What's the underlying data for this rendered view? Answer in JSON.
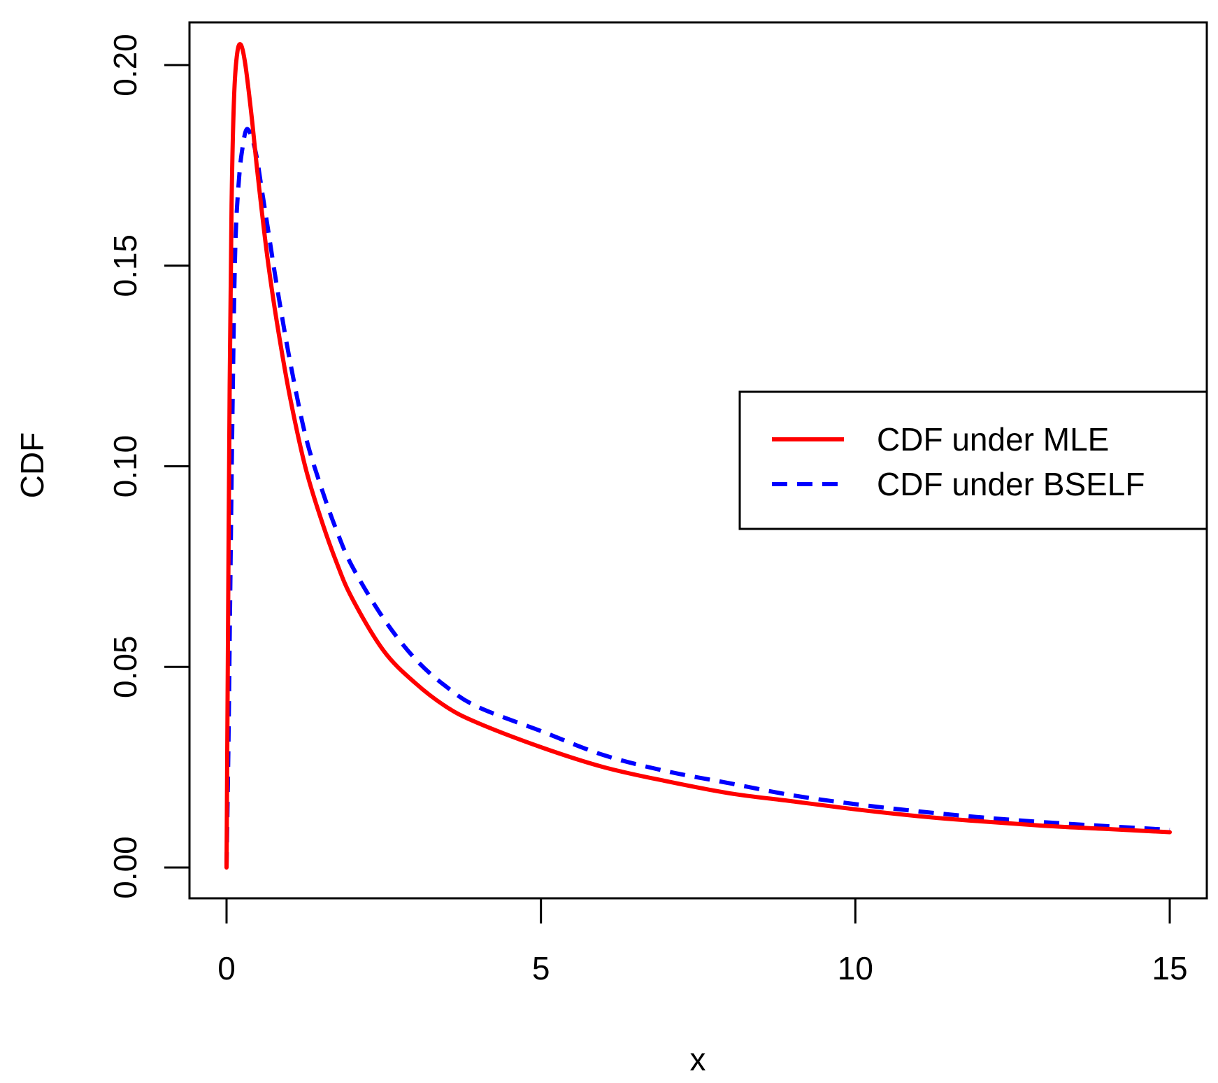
{
  "chart_data": {
    "type": "line",
    "title": "",
    "xlabel": "x",
    "ylabel": "CDF",
    "xlim": [
      0,
      15
    ],
    "ylim": [
      0,
      0.2
    ],
    "xticks": [
      0,
      5,
      10,
      15
    ],
    "xtick_labels": [
      "0",
      "5",
      "10",
      "15"
    ],
    "yticks": [
      0,
      0.05,
      0.1,
      0.15,
      0.2
    ],
    "ytick_labels": [
      "0.00",
      "0.05",
      "0.10",
      "0.15",
      "0.20"
    ],
    "grid": false,
    "legend_position": "right",
    "series": [
      {
        "name": "CDF under MLE",
        "color": "#ff0000",
        "style": "solid",
        "x": [
          0,
          0.02,
          0.05,
          0.08,
          0.12,
          0.17,
          0.23,
          0.3,
          0.4,
          0.5,
          0.65,
          0.8,
          1,
          1.25,
          1.5,
          1.75,
          2,
          2.5,
          3,
          3.5,
          4,
          5,
          6,
          7,
          8,
          9,
          10,
          11,
          12,
          13,
          14,
          15
        ],
        "y": [
          0,
          0.05,
          0.12,
          0.165,
          0.192,
          0.203,
          0.205,
          0.2,
          0.187,
          0.172,
          0.152,
          0.136,
          0.118,
          0.1,
          0.087,
          0.076,
          0.067,
          0.054,
          0.046,
          0.04,
          0.036,
          0.03,
          0.025,
          0.0215,
          0.0185,
          0.0165,
          0.0145,
          0.0128,
          0.0115,
          0.0104,
          0.0096,
          0.0088
        ]
      },
      {
        "name": "CDF under BSELF",
        "color": "#0000ff",
        "style": "dashed",
        "x": [
          0,
          0.03,
          0.06,
          0.1,
          0.14,
          0.2,
          0.26,
          0.32,
          0.4,
          0.48,
          0.56,
          0.65,
          0.8,
          1,
          1.25,
          1.5,
          1.75,
          2,
          2.5,
          3,
          3.5,
          4,
          5,
          6,
          7,
          8,
          9,
          10,
          11,
          12,
          13,
          14,
          15
        ],
        "y": [
          0,
          0.03,
          0.07,
          0.12,
          0.155,
          0.172,
          0.18,
          0.184,
          0.182,
          0.177,
          0.169,
          0.16,
          0.145,
          0.127,
          0.108,
          0.095,
          0.084,
          0.075,
          0.062,
          0.052,
          0.045,
          0.04,
          0.034,
          0.028,
          0.024,
          0.021,
          0.018,
          0.0158,
          0.014,
          0.0125,
          0.0113,
          0.0103,
          0.0094
        ]
      }
    ]
  }
}
